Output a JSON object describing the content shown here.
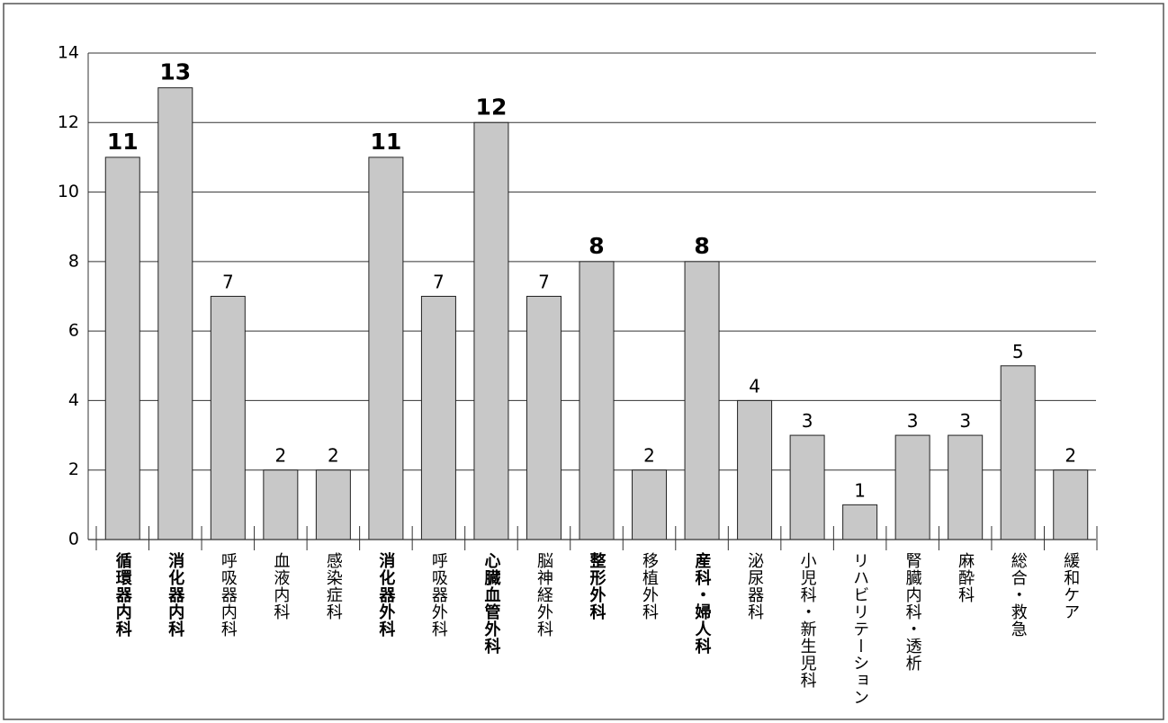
{
  "chart_data": {
    "type": "bar",
    "categories": [
      "循環器内科",
      "消化器内科",
      "呼吸器内科",
      "血液内科",
      "感染症科",
      "消化器外科",
      "呼吸器外科",
      "心臓血管外科",
      "脳神経外科",
      "整形外科",
      "移植外科",
      "産科・婦人科",
      "泌尿器科",
      "小児科・新生児科",
      "リハビリテーション",
      "腎臓内科・透析",
      "麻酔科",
      "総合・救急",
      "緩和ケア"
    ],
    "values": [
      11,
      13,
      7,
      2,
      2,
      11,
      7,
      12,
      7,
      8,
      2,
      8,
      4,
      3,
      1,
      3,
      3,
      5,
      2
    ],
    "bold": [
      true,
      true,
      false,
      false,
      false,
      true,
      false,
      true,
      false,
      true,
      false,
      true,
      false,
      false,
      false,
      false,
      false,
      false,
      false
    ],
    "color": "#c8c8c8",
    "ylim": [
      0,
      14
    ],
    "yticks": [
      0,
      2,
      4,
      6,
      8,
      10,
      12,
      14
    ],
    "grid": true
  }
}
